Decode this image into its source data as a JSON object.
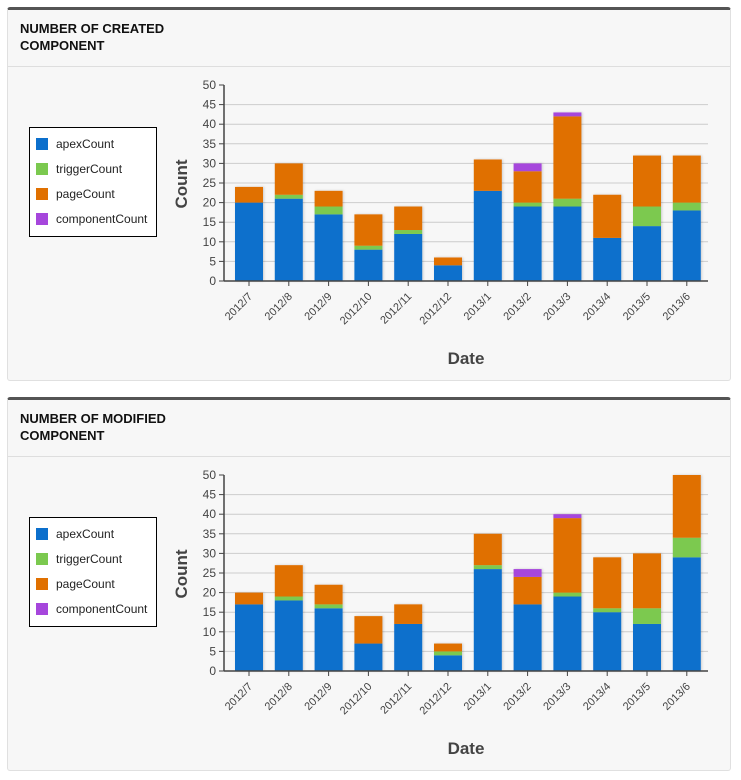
{
  "legend_colors": {
    "apexCount": "#0c6fcc",
    "triggerCount": "#7bc94f",
    "pageCount": "#e07000",
    "componentCount": "#a646dc"
  },
  "chart_data": [
    {
      "type": "bar",
      "stacked": true,
      "title": "NUMBER OF CREATED COMPONENT",
      "xlabel": "Date",
      "ylabel": "Count",
      "ylim": [
        0,
        50
      ],
      "yticks": [
        0,
        5,
        10,
        15,
        20,
        25,
        30,
        35,
        40,
        45,
        50
      ],
      "grid": true,
      "legend_position": "left",
      "categories": [
        "2012/7",
        "2012/8",
        "2012/9",
        "2012/10",
        "2012/11",
        "2012/12",
        "2013/1",
        "2013/2",
        "2013/3",
        "2013/4",
        "2013/5",
        "2013/6"
      ],
      "series": [
        {
          "name": "apexCount",
          "color": "#0c6fcc",
          "values": [
            20,
            21,
            17,
            8,
            12,
            4,
            23,
            19,
            19,
            11,
            14,
            18
          ]
        },
        {
          "name": "triggerCount",
          "color": "#7bc94f",
          "values": [
            0,
            1,
            2,
            1,
            1,
            0,
            0,
            1,
            2,
            0,
            5,
            2
          ]
        },
        {
          "name": "pageCount",
          "color": "#e07000",
          "values": [
            4,
            8,
            4,
            8,
            6,
            2,
            8,
            8,
            21,
            11,
            13,
            12
          ]
        },
        {
          "name": "componentCount",
          "color": "#a646dc",
          "values": [
            0,
            0,
            0,
            0,
            0,
            0,
            0,
            2,
            1,
            0,
            0,
            0
          ]
        }
      ]
    },
    {
      "type": "bar",
      "stacked": true,
      "title": "NUMBER OF MODIFIED COMPONENT",
      "xlabel": "Date",
      "ylabel": "Count",
      "ylim": [
        0,
        50
      ],
      "yticks": [
        0,
        5,
        10,
        15,
        20,
        25,
        30,
        35,
        40,
        45,
        50
      ],
      "grid": true,
      "legend_position": "left",
      "categories": [
        "2012/7",
        "2012/8",
        "2012/9",
        "2012/10",
        "2012/11",
        "2012/12",
        "2013/1",
        "2013/2",
        "2013/3",
        "2013/4",
        "2013/5",
        "2013/6"
      ],
      "series": [
        {
          "name": "apexCount",
          "color": "#0c6fcc",
          "values": [
            17,
            18,
            16,
            7,
            12,
            4,
            26,
            17,
            19,
            15,
            12,
            29
          ]
        },
        {
          "name": "triggerCount",
          "color": "#7bc94f",
          "values": [
            0,
            1,
            1,
            0,
            0,
            1,
            1,
            0,
            1,
            1,
            4,
            5
          ]
        },
        {
          "name": "pageCount",
          "color": "#e07000",
          "values": [
            3,
            8,
            5,
            7,
            5,
            2,
            8,
            7,
            19,
            13,
            14,
            16
          ]
        },
        {
          "name": "componentCount",
          "color": "#a646dc",
          "values": [
            0,
            0,
            0,
            0,
            0,
            0,
            0,
            2,
            1,
            0,
            0,
            0
          ]
        }
      ]
    }
  ]
}
